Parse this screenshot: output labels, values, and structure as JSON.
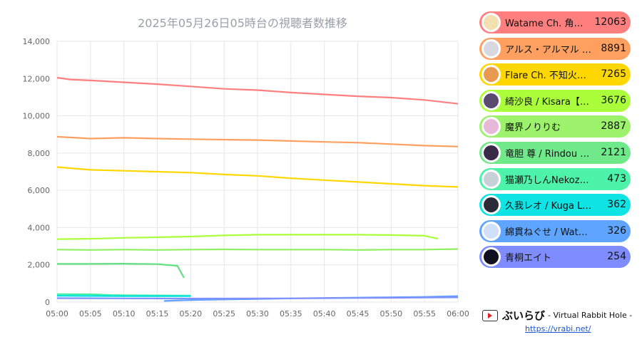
{
  "chart_data": {
    "type": "line",
    "title": "2025年05月26日05時台の視聴者数推移",
    "x_ticks": [
      "05:00",
      "05:05",
      "05:10",
      "05:15",
      "05:20",
      "05:25",
      "05:30",
      "05:35",
      "05:40",
      "05:45",
      "05:50",
      "05:55",
      "06:00"
    ],
    "y_ticks": [
      "0",
      "2,000",
      "4,000",
      "6,000",
      "8,000",
      "10,000",
      "12,000",
      "14,000"
    ],
    "ylim": [
      0,
      14000
    ],
    "xlim_minutes": [
      0,
      60
    ],
    "grid": true,
    "series": [
      {
        "name": "Watame Ch. 角巻…",
        "color": "#ff7f7f",
        "points": [
          [
            0,
            12050
          ],
          [
            2,
            11950
          ],
          [
            5,
            11900
          ],
          [
            10,
            11800
          ],
          [
            15,
            11700
          ],
          [
            20,
            11580
          ],
          [
            25,
            11450
          ],
          [
            30,
            11380
          ],
          [
            35,
            11250
          ],
          [
            40,
            11150
          ],
          [
            45,
            11050
          ],
          [
            50,
            10980
          ],
          [
            55,
            10850
          ],
          [
            60,
            10650
          ]
        ]
      },
      {
        "name": "アルス・アルマル -…",
        "color": "#ffa060",
        "points": [
          [
            0,
            8880
          ],
          [
            5,
            8780
          ],
          [
            10,
            8820
          ],
          [
            15,
            8780
          ],
          [
            20,
            8750
          ],
          [
            25,
            8720
          ],
          [
            30,
            8700
          ],
          [
            35,
            8650
          ],
          [
            40,
            8600
          ],
          [
            45,
            8560
          ],
          [
            50,
            8480
          ],
          [
            55,
            8400
          ],
          [
            60,
            8350
          ]
        ]
      },
      {
        "name": "Flare Ch. 不知火フ…",
        "color": "#ffd700",
        "points": [
          [
            0,
            7250
          ],
          [
            5,
            7100
          ],
          [
            10,
            7050
          ],
          [
            15,
            7000
          ],
          [
            20,
            6950
          ],
          [
            25,
            6850
          ],
          [
            30,
            6780
          ],
          [
            35,
            6650
          ],
          [
            40,
            6550
          ],
          [
            45,
            6450
          ],
          [
            50,
            6350
          ],
          [
            55,
            6250
          ],
          [
            60,
            6180
          ]
        ]
      },
      {
        "name": "綺沙良 / Kisara【…",
        "color": "#aaff3a",
        "points": [
          [
            0,
            3380
          ],
          [
            5,
            3400
          ],
          [
            10,
            3450
          ],
          [
            15,
            3480
          ],
          [
            20,
            3520
          ],
          [
            25,
            3580
          ],
          [
            30,
            3620
          ],
          [
            35,
            3620
          ],
          [
            40,
            3620
          ],
          [
            45,
            3620
          ],
          [
            50,
            3600
          ],
          [
            55,
            3560
          ],
          [
            57,
            3400
          ]
        ]
      },
      {
        "name": "魔界ノりりむ",
        "color": "#90ee60",
        "points": [
          [
            0,
            2820
          ],
          [
            5,
            2800
          ],
          [
            10,
            2820
          ],
          [
            15,
            2800
          ],
          [
            20,
            2820
          ],
          [
            25,
            2830
          ],
          [
            30,
            2820
          ],
          [
            35,
            2820
          ],
          [
            40,
            2820
          ],
          [
            45,
            2800
          ],
          [
            50,
            2820
          ],
          [
            55,
            2820
          ],
          [
            60,
            2850
          ]
        ]
      },
      {
        "name": "竜胆 尊 / Rindou M…",
        "color": "#60e080",
        "points": [
          [
            0,
            2050
          ],
          [
            5,
            2050
          ],
          [
            10,
            2060
          ],
          [
            15,
            2040
          ],
          [
            18,
            1950
          ],
          [
            19,
            1300
          ]
        ]
      },
      {
        "name": "猫瀬乃しんNekozen…",
        "color": "#40f0a0",
        "points": [
          [
            0,
            430
          ],
          [
            5,
            420
          ],
          [
            8,
            380
          ],
          [
            10,
            370
          ],
          [
            15,
            360
          ],
          [
            20,
            350
          ]
        ]
      },
      {
        "name": "久我レオ / Kuga Leo",
        "color": "#00e0e0",
        "points": [
          [
            0,
            340
          ],
          [
            5,
            330
          ],
          [
            10,
            320
          ],
          [
            15,
            320
          ],
          [
            20,
            320
          ]
        ]
      },
      {
        "name": "綿貫ねぐせ / Watan…",
        "color": "#60a0ff",
        "points": [
          [
            16,
            60
          ],
          [
            20,
            110
          ],
          [
            25,
            140
          ],
          [
            30,
            170
          ],
          [
            35,
            200
          ],
          [
            40,
            220
          ],
          [
            45,
            240
          ],
          [
            50,
            260
          ],
          [
            55,
            280
          ],
          [
            60,
            320
          ]
        ]
      },
      {
        "name": "青桐エイト",
        "color": "#8090ff",
        "points": [
          [
            0,
            210
          ],
          [
            5,
            205
          ],
          [
            10,
            200
          ],
          [
            15,
            195
          ],
          [
            20,
            190
          ],
          [
            25,
            190
          ],
          [
            30,
            195
          ],
          [
            35,
            200
          ],
          [
            40,
            210
          ],
          [
            45,
            220
          ],
          [
            50,
            230
          ],
          [
            55,
            240
          ],
          [
            60,
            254
          ]
        ]
      }
    ]
  },
  "legend": [
    {
      "name": "Watame Ch. 角巻…",
      "value": "12063",
      "color": "#ff7f7f",
      "avatar_color": "#f3e0b0"
    },
    {
      "name": "アルス・アルマル -…",
      "value": "8891",
      "color": "#ffa060",
      "avatar_color": "#d8d8e0"
    },
    {
      "name": "Flare Ch. 不知火フ…",
      "value": "7265",
      "color": "#ffd700",
      "avatar_color": "#e89a50"
    },
    {
      "name": "綺沙良 / Kisara【…",
      "value": "3676",
      "color": "#aaff3a",
      "avatar_color": "#5a4a70"
    },
    {
      "name": "魔界ノりりむ",
      "value": "2887",
      "color": "#9cf26a",
      "avatar_color": "#e8b8d8"
    },
    {
      "name": "竜胆 尊 / Rindou M…",
      "value": "2121",
      "color": "#6fe98a",
      "avatar_color": "#3a2a4a"
    },
    {
      "name": "猫瀬乃しんNekozen…",
      "value": "473",
      "color": "#4cf3a8",
      "avatar_color": "#c8d0d8"
    },
    {
      "name": "久我レオ / Kuga Leo",
      "value": "362",
      "color": "#10e3e3",
      "avatar_color": "#2a2a38"
    },
    {
      "name": "綿貫ねぐせ / Watan…",
      "value": "326",
      "color": "#5fa5ff",
      "avatar_color": "#d0e0f8"
    },
    {
      "name": "青桐エイト",
      "value": "254",
      "color": "#7f8cff",
      "avatar_color": "#101020"
    }
  ],
  "brand": {
    "name": "ぶいらび",
    "subtitle": "- Virtual Rabbit Hole -",
    "url": "https://vrabi.net/",
    "icon": "video-play-icon"
  }
}
